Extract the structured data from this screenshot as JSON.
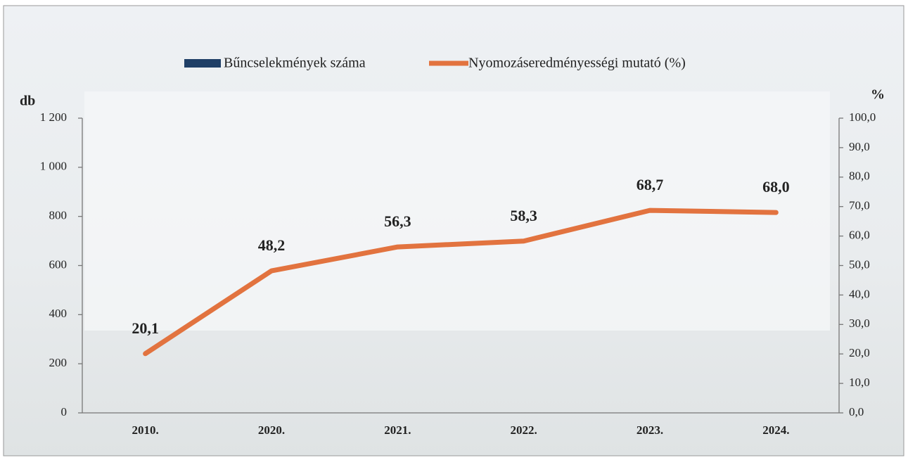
{
  "chart_data": {
    "type": "bar-line",
    "categories": [
      "2010.",
      "2020.",
      "2021.",
      "2022.",
      "2023.",
      "2024."
    ],
    "series": [
      {
        "name": "Bűncselekmények száma",
        "type": "bar",
        "color": "#1f3f66",
        "values": [
          null,
          null,
          null,
          null,
          null,
          null
        ]
      },
      {
        "name": "Nyomozáseredményességi mutató (%)",
        "type": "line",
        "axis": "y2",
        "color": "#e2733f",
        "values": [
          20.1,
          48.2,
          56.3,
          58.3,
          68.7,
          68.0
        ],
        "value_labels": [
          "20,1",
          "48,2",
          "56,3",
          "58,3",
          "68,7",
          "68,0"
        ]
      }
    ],
    "ylabel": "db",
    "y2label": "%",
    "ylim": [
      0,
      1200
    ],
    "yticks": [
      0,
      200,
      400,
      600,
      800,
      {
        "value": 1000,
        "label": "1 000"
      },
      {
        "value": 1200,
        "label": "1 200"
      }
    ],
    "y2lim": [
      0,
      100
    ],
    "y2ticks": [
      {
        "value": 0,
        "label": "0,0"
      },
      {
        "value": 10,
        "label": "10,0"
      },
      {
        "value": 20,
        "label": "20,0"
      },
      {
        "value": 30,
        "label": "30,0"
      },
      {
        "value": 40,
        "label": "40,0"
      },
      {
        "value": 50,
        "label": "50,0"
      },
      {
        "value": 60,
        "label": "60,0"
      },
      {
        "value": 70,
        "label": "70,0"
      },
      {
        "value": 80,
        "label": "80,0"
      },
      {
        "value": 90,
        "label": "90,0"
      },
      {
        "value": 100,
        "label": "100,0"
      }
    ],
    "legend": "top"
  }
}
